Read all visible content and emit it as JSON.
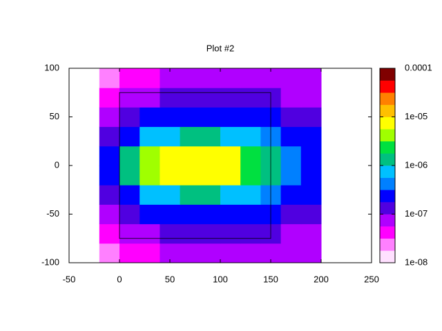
{
  "chart_data": {
    "type": "heatmap",
    "title": "Plot #2",
    "xbins": [
      -20,
      0,
      20,
      40,
      60,
      80,
      100,
      120,
      140,
      160,
      180,
      200
    ],
    "ybins": [
      -100,
      -80,
      -60,
      -40,
      -20,
      0,
      20,
      40,
      60,
      80,
      100
    ],
    "values": [
      [
        3e-08,
        4e-08,
        5e-08,
        6e-08,
        7e-08,
        7e-08,
        7e-08,
        7e-08,
        6e-08,
        6e-08,
        6e-08
      ],
      [
        4e-08,
        6e-08,
        8e-08,
        1e-07,
        1.2e-07,
        1.2e-07,
        1.2e-07,
        1.1e-07,
        1e-07,
        9e-08,
        8e-08
      ],
      [
        6e-08,
        1.2e-07,
        2e-07,
        2.5e-07,
        3e-07,
        3e-07,
        3e-07,
        2.5e-07,
        2e-07,
        1.5e-07,
        1.2e-07
      ],
      [
        1e-07,
        3e-07,
        6e-07,
        8e-07,
        1e-06,
        1e-06,
        9e-07,
        7e-07,
        4e-07,
        2.5e-07,
        1.8e-07
      ],
      [
        2e-07,
        1.5e-06,
        4e-06,
        7e-06,
        8e-06,
        8e-06,
        6e-06,
        3e-06,
        1e-06,
        4e-07,
        2.5e-07
      ],
      [
        2e-07,
        1.5e-06,
        4e-06,
        7e-06,
        8e-06,
        8e-06,
        6e-06,
        3e-06,
        1e-06,
        4e-07,
        2.5e-07
      ],
      [
        1e-07,
        3e-07,
        6e-07,
        8e-07,
        1e-06,
        1e-06,
        9e-07,
        7e-07,
        4e-07,
        2.5e-07,
        1.8e-07
      ],
      [
        6e-08,
        1.2e-07,
        2e-07,
        2.5e-07,
        3e-07,
        3e-07,
        3e-07,
        2.5e-07,
        2e-07,
        1.5e-07,
        1.2e-07
      ],
      [
        4e-08,
        6e-08,
        8e-08,
        1e-07,
        1.2e-07,
        1.2e-07,
        1.2e-07,
        1.1e-07,
        1e-07,
        9e-08,
        8e-08
      ],
      [
        3e-08,
        4e-08,
        5e-08,
        6e-08,
        7e-08,
        7e-08,
        7e-08,
        7e-08,
        6e-08,
        6e-08,
        6e-08
      ]
    ],
    "xlim": [
      -50,
      250
    ],
    "xticks": [
      -50,
      0,
      50,
      100,
      150,
      200,
      250
    ],
    "ylim": [
      -100,
      100
    ],
    "yticks": [
      -100,
      -50,
      0,
      50,
      100
    ],
    "box": {
      "x": [
        0,
        150
      ],
      "y": [
        -75,
        75
      ]
    },
    "colorbar": {
      "log": true,
      "lim": [
        1e-08,
        0.0001
      ],
      "ticks": [
        {
          "value": 1e-08,
          "label": "1e-08"
        },
        {
          "value": 1e-07,
          "label": "1e-07"
        },
        {
          "value": 1e-06,
          "label": "1e-06"
        },
        {
          "value": 1e-05,
          "label": "1e-05"
        },
        0.0001
      ],
      "colors": [
        "#ffe0ff",
        "#ff80ff",
        "#ff00ff",
        "#b000ff",
        "#5000e0",
        "#0000ff",
        "#0080ff",
        "#00c0ff",
        "#00c080",
        "#00e040",
        "#a0ff00",
        "#ffff00",
        "#ffc000",
        "#ff8000",
        "#ff0000",
        "#800000"
      ]
    }
  }
}
